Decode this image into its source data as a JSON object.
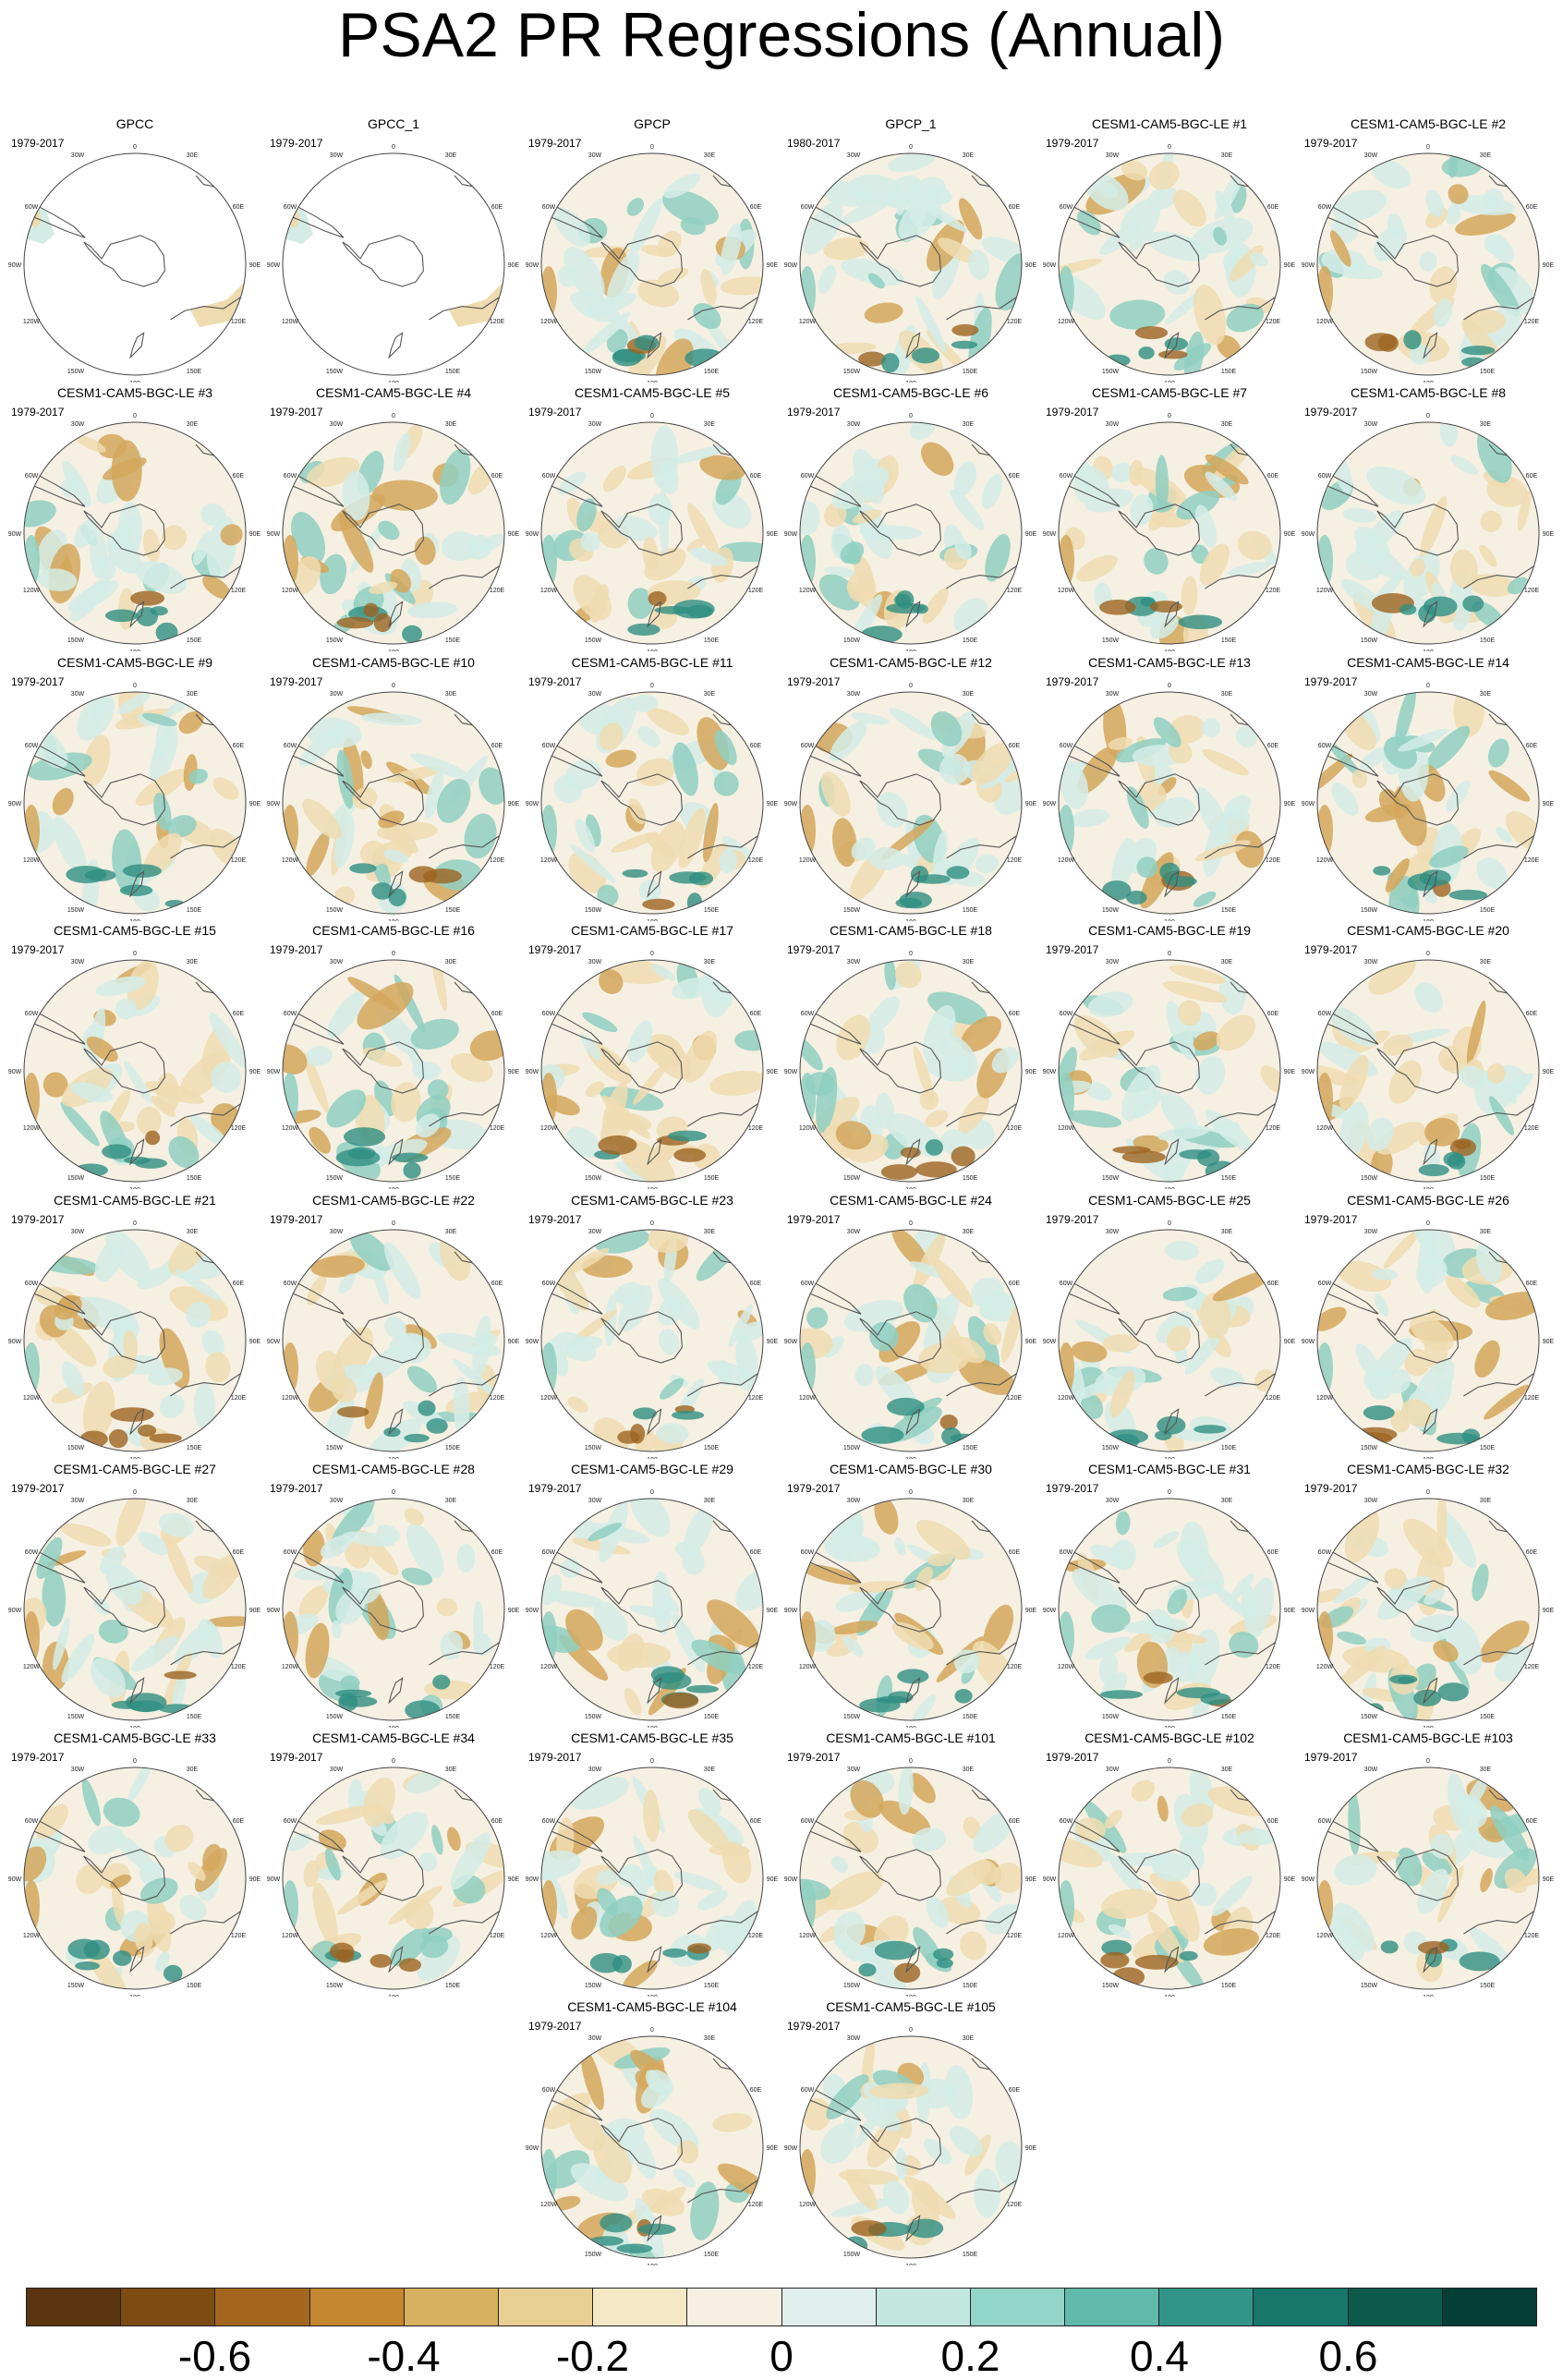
{
  "title": "PSA2 PR Regressions (Annual)",
  "map_labels": {
    "lon_0": "0",
    "lon_30e": "30E",
    "lon_60e": "60E",
    "lon_90e": "90E",
    "lon_120e": "120E",
    "lon_150e": "150E",
    "lon_180": "180",
    "lon_150w": "150W",
    "lon_120w": "120W",
    "lon_90w": "90W",
    "lon_60w": "60W",
    "lon_30w": "30W"
  },
  "panels": [
    {
      "title": "GPCC",
      "years": "1979-2017",
      "coverage": "land-only"
    },
    {
      "title": "GPCC_1",
      "years": "1979-2017",
      "coverage": "land-only"
    },
    {
      "title": "GPCP",
      "years": "1979-2017",
      "coverage": "full"
    },
    {
      "title": "GPCP_1",
      "years": "1980-2017",
      "coverage": "full"
    },
    {
      "title": "CESM1-CAM5-BGC-LE #1",
      "years": "1979-2017",
      "coverage": "full"
    },
    {
      "title": "CESM1-CAM5-BGC-LE #2",
      "years": "1979-2017",
      "coverage": "full"
    },
    {
      "title": "CESM1-CAM5-BGC-LE #3",
      "years": "1979-2017",
      "coverage": "full"
    },
    {
      "title": "CESM1-CAM5-BGC-LE #4",
      "years": "1979-2017",
      "coverage": "full"
    },
    {
      "title": "CESM1-CAM5-BGC-LE #5",
      "years": "1979-2017",
      "coverage": "full"
    },
    {
      "title": "CESM1-CAM5-BGC-LE #6",
      "years": "1979-2017",
      "coverage": "full"
    },
    {
      "title": "CESM1-CAM5-BGC-LE #7",
      "years": "1979-2017",
      "coverage": "full"
    },
    {
      "title": "CESM1-CAM5-BGC-LE #8",
      "years": "1979-2017",
      "coverage": "full"
    },
    {
      "title": "CESM1-CAM5-BGC-LE #9",
      "years": "1979-2017",
      "coverage": "full"
    },
    {
      "title": "CESM1-CAM5-BGC-LE #10",
      "years": "1979-2017",
      "coverage": "full"
    },
    {
      "title": "CESM1-CAM5-BGC-LE #11",
      "years": "1979-2017",
      "coverage": "full"
    },
    {
      "title": "CESM1-CAM5-BGC-LE #12",
      "years": "1979-2017",
      "coverage": "full"
    },
    {
      "title": "CESM1-CAM5-BGC-LE #13",
      "years": "1979-2017",
      "coverage": "full"
    },
    {
      "title": "CESM1-CAM5-BGC-LE #14",
      "years": "1979-2017",
      "coverage": "full"
    },
    {
      "title": "CESM1-CAM5-BGC-LE #15",
      "years": "1979-2017",
      "coverage": "full"
    },
    {
      "title": "CESM1-CAM5-BGC-LE #16",
      "years": "1979-2017",
      "coverage": "full"
    },
    {
      "title": "CESM1-CAM5-BGC-LE #17",
      "years": "1979-2017",
      "coverage": "full"
    },
    {
      "title": "CESM1-CAM5-BGC-LE #18",
      "years": "1979-2017",
      "coverage": "full"
    },
    {
      "title": "CESM1-CAM5-BGC-LE #19",
      "years": "1979-2017",
      "coverage": "full"
    },
    {
      "title": "CESM1-CAM5-BGC-LE #20",
      "years": "1979-2017",
      "coverage": "full"
    },
    {
      "title": "CESM1-CAM5-BGC-LE #21",
      "years": "1979-2017",
      "coverage": "full"
    },
    {
      "title": "CESM1-CAM5-BGC-LE #22",
      "years": "1979-2017",
      "coverage": "full"
    },
    {
      "title": "CESM1-CAM5-BGC-LE #23",
      "years": "1979-2017",
      "coverage": "full"
    },
    {
      "title": "CESM1-CAM5-BGC-LE #24",
      "years": "1979-2017",
      "coverage": "full"
    },
    {
      "title": "CESM1-CAM5-BGC-LE #25",
      "years": "1979-2017",
      "coverage": "full"
    },
    {
      "title": "CESM1-CAM5-BGC-LE #26",
      "years": "1979-2017",
      "coverage": "full"
    },
    {
      "title": "CESM1-CAM5-BGC-LE #27",
      "years": "1979-2017",
      "coverage": "full"
    },
    {
      "title": "CESM1-CAM5-BGC-LE #28",
      "years": "1979-2017",
      "coverage": "full"
    },
    {
      "title": "CESM1-CAM5-BGC-LE #29",
      "years": "1979-2017",
      "coverage": "full"
    },
    {
      "title": "CESM1-CAM5-BGC-LE #30",
      "years": "1979-2017",
      "coverage": "full"
    },
    {
      "title": "CESM1-CAM5-BGC-LE #31",
      "years": "1979-2017",
      "coverage": "full"
    },
    {
      "title": "CESM1-CAM5-BGC-LE #32",
      "years": "1979-2017",
      "coverage": "full"
    },
    {
      "title": "CESM1-CAM5-BGC-LE #33",
      "years": "1979-2017",
      "coverage": "full"
    },
    {
      "title": "CESM1-CAM5-BGC-LE #34",
      "years": "1979-2017",
      "coverage": "full"
    },
    {
      "title": "CESM1-CAM5-BGC-LE #35",
      "years": "1979-2017",
      "coverage": "full"
    },
    {
      "title": "CESM1-CAM5-BGC-LE #101",
      "years": "1979-2017",
      "coverage": "full"
    },
    {
      "title": "CESM1-CAM5-BGC-LE #102",
      "years": "1979-2017",
      "coverage": "full"
    },
    {
      "title": "CESM1-CAM5-BGC-LE #103",
      "years": "1979-2017",
      "coverage": "full"
    },
    {
      "title": "CESM1-CAM5-BGC-LE #104",
      "years": "1979-2017",
      "coverage": "full"
    },
    {
      "title": "CESM1-CAM5-BGC-LE #105",
      "years": "1979-2017",
      "coverage": "full"
    }
  ],
  "colorbar": {
    "colors": [
      "#5a3510",
      "#7e4b13",
      "#a4661e",
      "#c4862f",
      "#d7b060",
      "#e8cf93",
      "#f5e8c6",
      "#f5f0e2",
      "#e1efec",
      "#c3e7df",
      "#93d5c8",
      "#61b9aa",
      "#33958a",
      "#18766b",
      "#0b5a4c",
      "#053e33"
    ],
    "tick_labels": [
      "-0.6",
      "-0.4",
      "-0.2",
      "0",
      "0.2",
      "0.4",
      "0.6"
    ]
  },
  "palette": {
    "neutral": "#f5f0e2",
    "light_brown": "#eedcb0",
    "brown": "#d3a75c",
    "dark_brown": "#9c6420",
    "light_teal": "#d4ece6",
    "teal": "#8fcfc1",
    "dark_teal": "#2f8f82",
    "coast": "#555555"
  }
}
